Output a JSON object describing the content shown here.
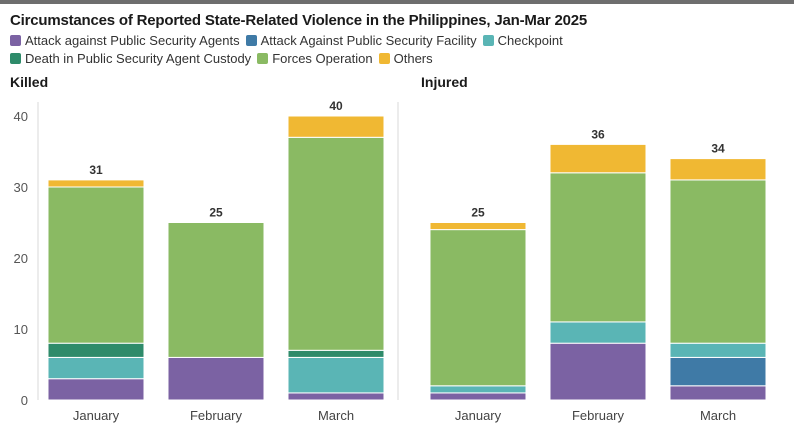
{
  "title": "Circumstances of Reported State-Related Violence in the Philippines, Jan-Mar 2025",
  "legend": [
    {
      "label": "Attack against Public Security Agents",
      "color": "#7b62a3"
    },
    {
      "label": "Attack Against Public Security Facility",
      "color": "#3f7aa6"
    },
    {
      "label": "Checkpoint",
      "color": "#5ab5b5"
    },
    {
      "label": "Death in Public Security Agent Custody",
      "color": "#2e8b6a"
    },
    {
      "label": "Forces Operation",
      "color": "#8aba63"
    },
    {
      "label": "Others",
      "color": "#f0b833"
    }
  ],
  "chart_data": [
    {
      "type": "bar",
      "stacked": true,
      "title": "Killed",
      "categories": [
        "January",
        "February",
        "March"
      ],
      "ylim": [
        0,
        40
      ],
      "yticks": [
        0,
        10,
        20,
        30,
        40
      ],
      "grid": false,
      "series": [
        {
          "name": "Attack against Public Security Agents",
          "values": [
            3,
            6,
            1
          ]
        },
        {
          "name": "Attack Against Public Security Facility",
          "values": [
            0,
            0,
            0
          ]
        },
        {
          "name": "Checkpoint",
          "values": [
            3,
            0,
            5
          ]
        },
        {
          "name": "Death in Public Security Agent Custody",
          "values": [
            2,
            0,
            1
          ]
        },
        {
          "name": "Forces Operation",
          "values": [
            22,
            19,
            30
          ]
        },
        {
          "name": "Others",
          "values": [
            1,
            0,
            3
          ]
        }
      ],
      "totals": [
        31,
        25,
        40
      ]
    },
    {
      "type": "bar",
      "stacked": true,
      "title": "Injured",
      "categories": [
        "January",
        "February",
        "March"
      ],
      "ylim": [
        0,
        40
      ],
      "yticks": [
        0,
        10,
        20,
        30,
        40
      ],
      "grid": false,
      "series": [
        {
          "name": "Attack against Public Security Agents",
          "values": [
            1,
            8,
            2
          ]
        },
        {
          "name": "Attack Against Public Security Facility",
          "values": [
            0,
            0,
            4
          ]
        },
        {
          "name": "Checkpoint",
          "values": [
            1,
            3,
            2
          ]
        },
        {
          "name": "Death in Public Security Agent Custody",
          "values": [
            0,
            0,
            0
          ]
        },
        {
          "name": "Forces Operation",
          "values": [
            22,
            21,
            23
          ]
        },
        {
          "name": "Others",
          "values": [
            1,
            4,
            3
          ]
        }
      ],
      "totals": [
        25,
        36,
        34
      ]
    }
  ]
}
